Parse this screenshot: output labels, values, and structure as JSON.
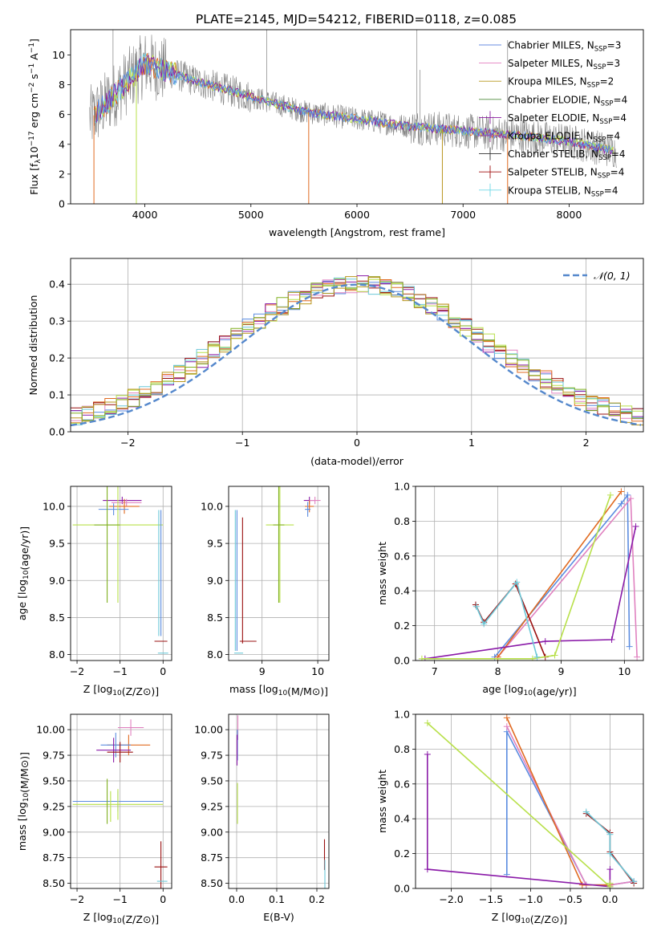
{
  "title": "PLATE=2145, MJD=54212, FIBERID=0118, z=0.085",
  "colors": {
    "spectrum": "#808080",
    "legend_line_colors": [
      "#6a8ee0",
      "#e47fbf",
      "#b8961e",
      "#4d8a3c",
      "#8b1da0",
      "#a8449a",
      "#333333",
      "#a11010",
      "#6fd8e6"
    ],
    "series_colors": [
      "#5b8ce0",
      "#e082c0",
      "#e06a20",
      "#8a1aa8",
      "#9a1010",
      "#b8e04a",
      "#6cc8d8",
      "#80b020"
    ],
    "normal_curve": "#5588cc",
    "grid": "#b0b0b0"
  },
  "chart_data": [
    {
      "id": "spectrum",
      "type": "line",
      "xlabel": "wavelength [Angstrom, rest frame]",
      "ylabel_parts": [
        "Flux [f",
        "λ",
        "10",
        "−17",
        " erg cm",
        "−2",
        " s",
        "−1",
        " A",
        "−1",
        "]"
      ],
      "xlim": [
        3300,
        8700
      ],
      "ylim": [
        0,
        11.7
      ],
      "xticks": [
        4000,
        5000,
        6000,
        7000,
        8000
      ],
      "yticks": [
        0,
        2,
        4,
        6,
        8,
        10
      ],
      "grid": false,
      "legend_position": "top-right",
      "legend": [
        {
          "label": "Chabrier MILES, N",
          "sub": "SSP",
          "suffix": "=3"
        },
        {
          "label": "Salpeter MILES, N",
          "sub": "SSP",
          "suffix": "=3"
        },
        {
          "label": "Kroupa MILES, N",
          "sub": "SSP",
          "suffix": "=2"
        },
        {
          "label": "Chabrier ELODIE, N",
          "sub": "SSP",
          "suffix": "=4"
        },
        {
          "label": "Salpeter ELODIE, N",
          "sub": "SSP",
          "suffix": "=4"
        },
        {
          "label": "Kroupa ELODIE, N",
          "sub": "SSP",
          "suffix": "=4"
        },
        {
          "label": "Chabrier STELIB, N",
          "sub": "SSP",
          "suffix": "=4"
        },
        {
          "label": "Salpeter STELIB, N",
          "sub": "SSP",
          "suffix": "=4"
        },
        {
          "label": "Kroupa STELIB, N",
          "sub": "SSP",
          "suffix": "=4"
        }
      ],
      "continuum": {
        "x": [
          3500,
          4000,
          4500,
          5000,
          5500,
          6000,
          6500,
          7000,
          7500,
          8000,
          8400
        ],
        "y": [
          5.8,
          9.4,
          8.2,
          7.2,
          6.2,
          5.7,
          5.2,
          4.9,
          4.6,
          4.2,
          3.6
        ]
      }
    },
    {
      "id": "residuals",
      "type": "histogram",
      "xlabel": "(data-model)/error",
      "ylabel": "Normed distribution",
      "xlim": [
        -2.5,
        2.5
      ],
      "ylim": [
        0,
        0.47
      ],
      "xticks": [
        -2,
        -1,
        0,
        1,
        2
      ],
      "yticks": [
        0.0,
        0.1,
        0.2,
        0.3,
        0.4
      ],
      "grid": true,
      "legend_position": "top-right",
      "legend": [
        "𝒩(0, 1)"
      ],
      "bin_width": 0.1,
      "bins_start": -2.5
    },
    {
      "id": "age-vs-z",
      "type": "errorbar",
      "xlabel": "Z [log10(Z/Z⊙)]",
      "ylabel": "age [log10(age/yr)]",
      "xlim": [
        -2.15,
        0.2
      ],
      "ylim": [
        7.92,
        10.27
      ],
      "xticks": [
        -2,
        -1,
        0
      ],
      "yticks": [
        8.0,
        8.5,
        9.0,
        9.5,
        10.0
      ],
      "points": [
        {
          "x": -0.95,
          "y": 10.08,
          "xerr": 0.45,
          "yerr": 0.05,
          "c": 3
        },
        {
          "x": -0.85,
          "y": 10.05,
          "xerr": 0.35,
          "yerr": 0.05,
          "c": 1
        },
        {
          "x": -0.9,
          "y": 10.0,
          "xerr": 0.35,
          "yerr": 0.1,
          "c": 2
        },
        {
          "x": -1.15,
          "y": 9.96,
          "xerr": 0.35,
          "yerr": 0.08,
          "c": 0
        },
        {
          "x": -1.05,
          "y": 9.75,
          "xerr": 1.05,
          "yerr": 1.05,
          "c": 5
        },
        {
          "x": -1.3,
          "y": 9.75,
          "xerr": 0.3,
          "yerr": 1.05,
          "c": 7
        },
        {
          "x": -0.05,
          "y": 9.1,
          "xerr": 0.0,
          "yerr": 0.85,
          "c": 0
        },
        {
          "x": -0.1,
          "y": 9.1,
          "xerr": 0.0,
          "yerr": 0.85,
          "c": 6
        },
        {
          "x": -0.05,
          "y": 8.18,
          "xerr": 0.15,
          "yerr": 0.0,
          "c": 4
        },
        {
          "x": 0.0,
          "y": 8.02,
          "xerr": 0.12,
          "yerr": 0.0,
          "c": 6
        }
      ]
    },
    {
      "id": "age-vs-mass",
      "type": "errorbar",
      "xlabel": "mass [log10(M/M⊙)]",
      "ylabel": "",
      "xlim": [
        8.4,
        10.2
      ],
      "ylim": [
        7.92,
        10.27
      ],
      "xticks": [
        9,
        10
      ],
      "yticks": [
        8.0,
        8.5,
        9.0,
        9.5,
        10.0
      ],
      "points": [
        {
          "x": 9.85,
          "y": 10.08,
          "xerr": 0.1,
          "yerr": 0.05,
          "c": 3
        },
        {
          "x": 9.95,
          "y": 10.08,
          "xerr": 0.1,
          "yerr": 0.05,
          "c": 1
        },
        {
          "x": 9.85,
          "y": 10.0,
          "xerr": 0.08,
          "yerr": 0.08,
          "c": 2
        },
        {
          "x": 9.82,
          "y": 9.96,
          "xerr": 0.05,
          "yerr": 0.1,
          "c": 0
        },
        {
          "x": 9.32,
          "y": 9.75,
          "xerr": 0.25,
          "yerr": 1.05,
          "c": 5
        },
        {
          "x": 9.3,
          "y": 9.75,
          "xerr": 0.1,
          "yerr": 1.05,
          "c": 7
        },
        {
          "x": 8.55,
          "y": 9.0,
          "xerr": 0.0,
          "yerr": 0.95,
          "c": 0
        },
        {
          "x": 8.52,
          "y": 9.0,
          "xerr": 0.0,
          "yerr": 0.95,
          "c": 6
        },
        {
          "x": 8.65,
          "y": 9.0,
          "xerr": 0.0,
          "yerr": 0.85,
          "c": 4
        },
        {
          "x": 8.75,
          "y": 8.18,
          "xerr": 0.15,
          "yerr": 0.0,
          "c": 4
        },
        {
          "x": 8.58,
          "y": 8.02,
          "xerr": 0.08,
          "yerr": 0.0,
          "c": 6
        }
      ]
    },
    {
      "id": "weight-vs-age",
      "type": "line",
      "xlabel": "age [log10(age/yr)]",
      "ylabel": "mass weight",
      "xlim": [
        6.7,
        10.3
      ],
      "ylim": [
        0,
        1.0
      ],
      "xticks": [
        7,
        8,
        9,
        10
      ],
      "yticks": [
        0.0,
        0.2,
        0.4,
        0.6,
        0.8,
        1.0
      ],
      "series": [
        {
          "c": 0,
          "x": [
            7.95,
            9.95,
            10.05,
            10.08
          ],
          "y": [
            0.02,
            0.9,
            0.95,
            0.08
          ]
        },
        {
          "c": 1,
          "x": [
            8.0,
            10.1,
            10.2
          ],
          "y": [
            0.02,
            0.93,
            0.02
          ]
        },
        {
          "c": 2,
          "x": [
            8.0,
            9.95
          ],
          "y": [
            0.02,
            0.97
          ]
        },
        {
          "c": 3,
          "x": [
            6.85,
            8.75,
            9.8,
            10.18
          ],
          "y": [
            0.01,
            0.11,
            0.12,
            0.77
          ]
        },
        {
          "c": 4,
          "x": [
            7.65,
            7.78,
            8.28,
            8.75
          ],
          "y": [
            0.32,
            0.22,
            0.44,
            0.02
          ]
        },
        {
          "c": 5,
          "x": [
            6.8,
            8.55,
            8.9,
            9.78
          ],
          "y": [
            0.01,
            0.01,
            0.03,
            0.95
          ]
        },
        {
          "c": 6,
          "x": [
            7.66,
            7.78,
            8.3,
            8.62
          ],
          "y": [
            0.31,
            0.21,
            0.45,
            0.02
          ]
        }
      ]
    },
    {
      "id": "mass-vs-z",
      "type": "errorbar",
      "xlabel": "Z [log10(Z/Z⊙)]",
      "ylabel": "mass [log10(M/M⊙)]",
      "xlim": [
        -2.15,
        0.2
      ],
      "ylim": [
        8.45,
        10.15
      ],
      "xticks": [
        -2,
        -1,
        0
      ],
      "yticks": [
        8.5,
        8.75,
        9.0,
        9.25,
        9.5,
        9.75,
        10.0
      ],
      "points": [
        {
          "x": -0.75,
          "y": 10.02,
          "xerr": 0.3,
          "yerr": 0.08,
          "c": 1
        },
        {
          "x": -0.8,
          "y": 9.85,
          "xerr": 0.5,
          "yerr": 0.1,
          "c": 2
        },
        {
          "x": -1.1,
          "y": 9.85,
          "xerr": 0.35,
          "yerr": 0.12,
          "c": 0
        },
        {
          "x": -1.15,
          "y": 9.8,
          "xerr": 0.4,
          "yerr": 0.12,
          "c": 3
        },
        {
          "x": -1.0,
          "y": 9.78,
          "xerr": 0.3,
          "yerr": 0.1,
          "c": 4
        },
        {
          "x": -1.05,
          "y": 9.3,
          "xerr": 1.05,
          "yerr": 0.1,
          "c": 0
        },
        {
          "x": -1.05,
          "y": 9.27,
          "xerr": 1.05,
          "yerr": 0.15,
          "c": 5
        },
        {
          "x": -1.3,
          "y": 9.3,
          "xerr": 0.0,
          "yerr": 0.22,
          "c": 7
        },
        {
          "x": -1.22,
          "y": 9.25,
          "xerr": 0.0,
          "yerr": 0.15,
          "c": 5
        },
        {
          "x": -0.05,
          "y": 8.66,
          "xerr": 0.15,
          "yerr": 0.25,
          "c": 4
        },
        {
          "x": -0.02,
          "y": 8.52,
          "xerr": 0.12,
          "yerr": 0.0,
          "c": 6
        }
      ]
    },
    {
      "id": "mass-vs-ebv",
      "type": "errorbar",
      "xlabel": "E(B-V)",
      "ylabel": "",
      "xlim": [
        -0.02,
        0.23
      ],
      "ylim": [
        8.45,
        10.15
      ],
      "xticks": [
        0.0,
        0.1,
        0.2
      ],
      "yticks": [
        8.5,
        8.75,
        9.0,
        9.25,
        9.5,
        9.75,
        10.0
      ],
      "points": [
        {
          "x": 0.003,
          "y": 10.02,
          "xerr": 0.0,
          "yerr": 0.12,
          "c": 1
        },
        {
          "x": 0.002,
          "y": 9.85,
          "xerr": 0.0,
          "yerr": 0.15,
          "c": 0
        },
        {
          "x": 0.001,
          "y": 9.8,
          "xerr": 0.0,
          "yerr": 0.15,
          "c": 3
        },
        {
          "x": 0.002,
          "y": 9.28,
          "xerr": 0.0,
          "yerr": 0.2,
          "c": 5
        },
        {
          "x": 0.219,
          "y": 8.78,
          "xerr": 0.0,
          "yerr": 0.15,
          "c": 4
        },
        {
          "x": 0.22,
          "y": 8.55,
          "xerr": 0.0,
          "yerr": 0.18,
          "c": 6
        }
      ]
    },
    {
      "id": "weight-vs-z",
      "type": "line",
      "xlabel": "Z [log10(Z/Z⊙)]",
      "ylabel": "mass weight",
      "xlim": [
        -2.45,
        0.42
      ],
      "ylim": [
        0,
        1.0
      ],
      "xticks": [
        -2.0,
        -1.5,
        -1.0,
        -0.5,
        0.0
      ],
      "yticks": [
        0.0,
        0.2,
        0.4,
        0.6,
        0.8,
        1.0
      ],
      "series": [
        {
          "c": 0,
          "x": [
            -1.3,
            -1.3,
            -0.3,
            0.0,
            0.3
          ],
          "y": [
            0.08,
            0.9,
            0.02,
            0.02,
            0.04
          ]
        },
        {
          "c": 1,
          "x": [
            -1.3,
            -0.3,
            0.0,
            0.3
          ],
          "y": [
            0.93,
            0.02,
            0.02,
            0.04
          ]
        },
        {
          "c": 2,
          "x": [
            -1.3,
            -0.35,
            0.0
          ],
          "y": [
            0.98,
            0.02,
            0.02
          ]
        },
        {
          "c": 3,
          "x": [
            -2.3,
            -2.3,
            0.0,
            0.0
          ],
          "y": [
            0.77,
            0.11,
            0.01,
            0.11
          ]
        },
        {
          "c": 4,
          "x": [
            -0.3,
            -0.0,
            0.0,
            0.3
          ],
          "y": [
            0.43,
            0.32,
            0.21,
            0.03
          ]
        },
        {
          "c": 5,
          "x": [
            -2.3,
            0.0,
            0.0
          ],
          "y": [
            0.95,
            0.01,
            0.03
          ]
        },
        {
          "c": 6,
          "x": [
            -0.3,
            0.0,
            0.0,
            0.3
          ],
          "y": [
            0.44,
            0.31,
            0.2,
            0.04
          ]
        }
      ]
    }
  ]
}
